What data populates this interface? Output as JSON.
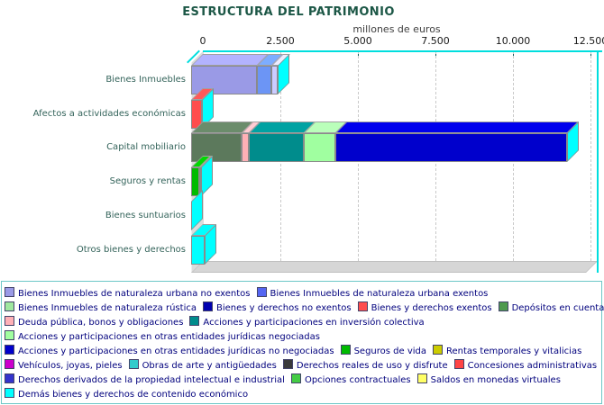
{
  "chart_data": {
    "type": "bar",
    "orientation": "horizontal",
    "stacked": true,
    "title": "ESTRUCTURA DEL PATRIMONIO",
    "xlabel": "millones de euros",
    "xlim": [
      0,
      12500
    ],
    "xticks": [
      0,
      2500,
      5000,
      7500,
      10000,
      12500
    ],
    "xtick_labels": [
      "0",
      "2.500",
      "5.000",
      "7.500",
      "10.000",
      "12.500"
    ],
    "grid": "vertical-dashed",
    "legend_position": "bottom",
    "end_cap_color": "#00FFFF",
    "categories": [
      "Bienes Inmuebles",
      "Afectos a actividades económicas",
      "Capital mobiliario",
      "Seguros y rentas",
      "Bienes suntuarios",
      "Otros bienes y derechos"
    ],
    "items": {
      "urbana_no_exentos": {
        "label": "Bienes Inmuebles de naturaleza urbana no exentos",
        "color": "#9a9ae6"
      },
      "urbana_exentos": {
        "label": "Bienes Inmuebles de naturaleza urbana exentos",
        "color": "#5566f2",
        "bar_color": "#6c95f5"
      },
      "rustica": {
        "label": "Bienes Inmuebles de naturaleza rústica",
        "color": "#9fe89f",
        "bar_color": "#ccccff"
      },
      "byd_no_exentos": {
        "label": "Bienes y derechos no exentos",
        "color": "#0000b0"
      },
      "byd_exentos": {
        "label": "Bienes y derechos exentos",
        "color": "#ff4d4d"
      },
      "depositos": {
        "label": "Depósitos en cuenta",
        "color": "#4e9a4e",
        "bar_color": "#5c795c"
      },
      "deuda": {
        "label": "Deuda pública, bonos y obligaciones",
        "color": "#ffb0b6"
      },
      "inv_colectiva": {
        "label": "Acciones y participaciones en inversión colectiva",
        "color": "#008c8c"
      },
      "negociadas": {
        "label": "Acciones y participaciones en otras entidades jurídicas negociadas",
        "color": "#a0ffa0"
      },
      "no_negociadas": {
        "label": "Acciones y participaciones en otras entidades jurídicas no negociadas",
        "color": "#0000cc"
      },
      "seguros_vida": {
        "label": "Seguros de vida",
        "color": "#00bb00"
      },
      "rentas": {
        "label": "Rentas temporales y vitalicias",
        "color": "#cccc00"
      },
      "vehiculos": {
        "label": "Vehículos, joyas, pieles",
        "color": "#cc00cc"
      },
      "obras_arte": {
        "label": "Obras de arte y antigüedades",
        "color": "#33cccc"
      },
      "derechos_reales": {
        "label": "Derechos reales de uso y disfrute",
        "color": "#3a3a3a"
      },
      "concesiones": {
        "label": "Concesiones administrativas",
        "color": "#ff4444"
      },
      "prop_intelectual": {
        "label": "Derechos derivados de la propiedad intelectual e industrial",
        "color": "#3333cc"
      },
      "opciones": {
        "label": "Opciones contractuales",
        "color": "#44cc44"
      },
      "saldos_virtuales": {
        "label": "Saldos en monedas virtuales",
        "color": "#ffff66"
      },
      "demas": {
        "label": "Demás bienes y derechos de contenido económico",
        "color": "#00ffff"
      }
    },
    "bars": [
      {
        "category": "Bienes Inmuebles",
        "segments": [
          {
            "item": "urbana_no_exentos",
            "value": 2120
          },
          {
            "item": "urbana_exentos",
            "value": 460
          },
          {
            "item": "rustica",
            "value": 225
          }
        ]
      },
      {
        "category": "Afectos a actividades económicas",
        "segments": [
          {
            "item": "byd_no_exentos",
            "value": 0
          },
          {
            "item": "byd_exentos",
            "value": 350
          }
        ]
      },
      {
        "category": "Capital mobiliario",
        "segments": [
          {
            "item": "depositos",
            "value": 1630
          },
          {
            "item": "deuda",
            "value": 230
          },
          {
            "item": "inv_colectiva",
            "value": 1775
          },
          {
            "item": "negociadas",
            "value": 1020
          },
          {
            "item": "no_negociadas",
            "value": 7470
          }
        ]
      },
      {
        "category": "Seguros y rentas",
        "segments": [
          {
            "item": "seguros_vida",
            "value": 260
          },
          {
            "item": "rentas",
            "value": 60
          }
        ]
      },
      {
        "category": "Bienes suntuarios",
        "segments": [
          {
            "item": "vehiculos",
            "value": 0
          },
          {
            "item": "obras_arte",
            "value": 0
          }
        ]
      },
      {
        "category": "Otros bienes y derechos",
        "segments": [
          {
            "item": "derechos_reales",
            "value": 0
          },
          {
            "item": "concesiones",
            "value": 0
          },
          {
            "item": "prop_intelectual",
            "value": 0
          },
          {
            "item": "opciones",
            "value": 0
          },
          {
            "item": "saldos_virtuales",
            "value": 0
          },
          {
            "item": "demas",
            "value": 435
          }
        ]
      }
    ],
    "legend_rows": [
      [
        "urbana_no_exentos",
        "urbana_exentos"
      ],
      [
        "rustica",
        "byd_no_exentos",
        "byd_exentos",
        "depositos"
      ],
      [
        "deuda",
        "inv_colectiva"
      ],
      [
        "negociadas"
      ],
      [
        "no_negociadas",
        "seguros_vida",
        "rentas"
      ],
      [
        "vehiculos",
        "obras_arte",
        "derechos_reales",
        "concesiones"
      ],
      [
        "prop_intelectual",
        "opciones",
        "saldos_virtuales"
      ],
      [
        "demas"
      ]
    ]
  }
}
